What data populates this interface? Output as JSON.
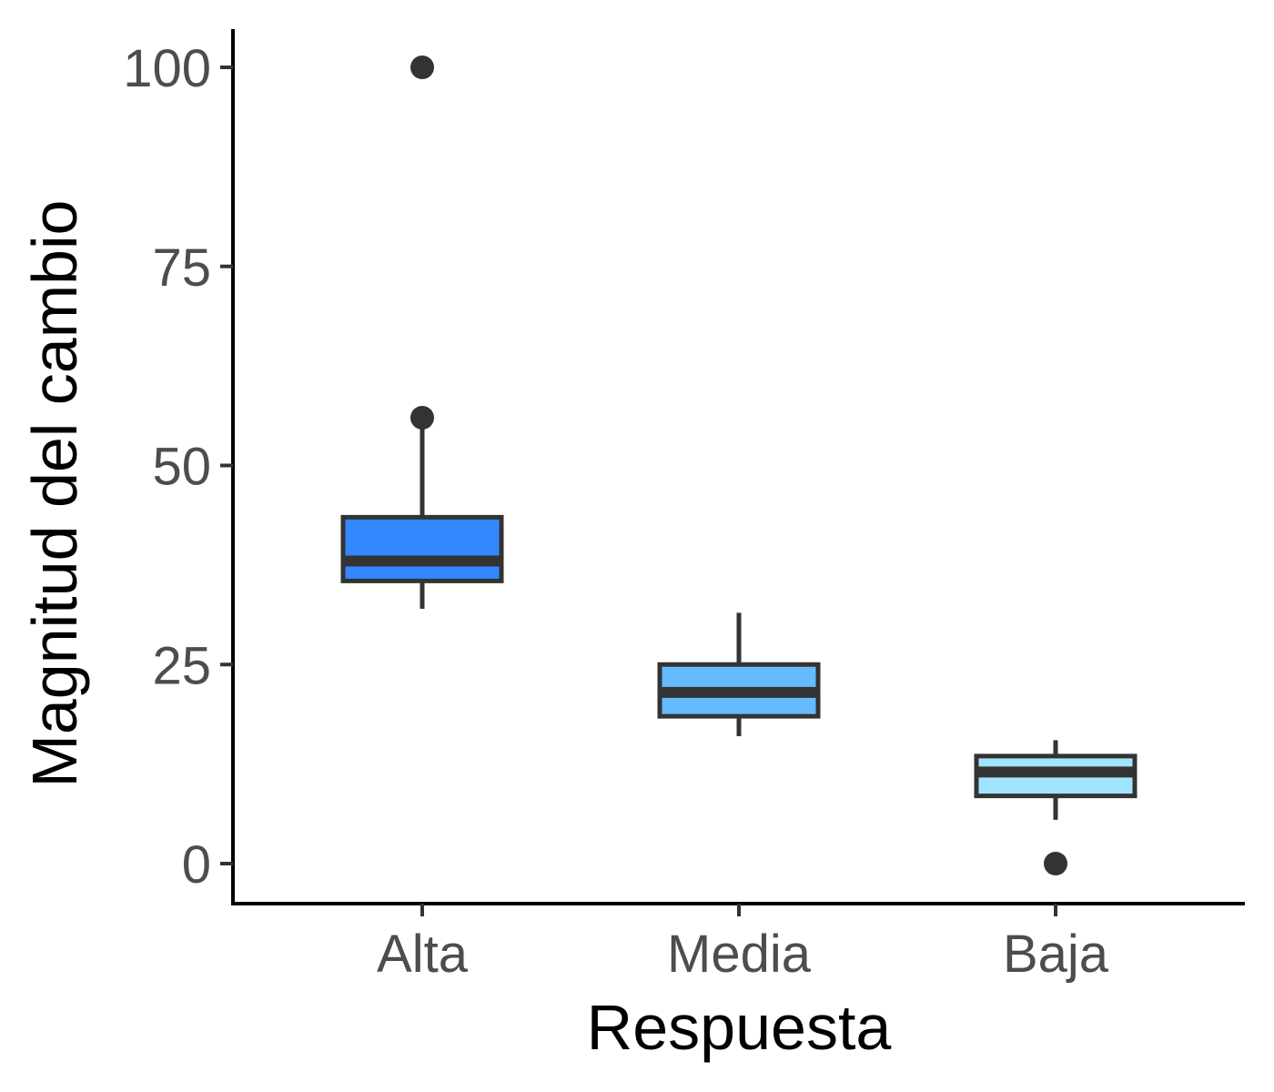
{
  "chart_data": {
    "type": "boxplot",
    "title": "",
    "xlabel": "Respuesta",
    "ylabel": "Magnitud del cambio",
    "categories": [
      "Alta",
      "Media",
      "Baja"
    ],
    "ylim": [
      -5,
      105
    ],
    "yticks": [
      0,
      25,
      50,
      75,
      100
    ],
    "grid": false,
    "legend": "none",
    "boxes": [
      {
        "category": "Alta",
        "whisker_low": 32,
        "q1": 35.5,
        "median": 38,
        "q3": 43.5,
        "whisker_high": 55,
        "outliers": [
          56,
          100
        ],
        "fill": "#3388ff"
      },
      {
        "category": "Media",
        "whisker_low": 16,
        "q1": 18.5,
        "median": 21.5,
        "q3": 25,
        "whisker_high": 31.5,
        "outliers": [],
        "fill": "#66bbff"
      },
      {
        "category": "Baja",
        "whisker_low": 5.5,
        "q1": 8.5,
        "median": 11.5,
        "q3": 13.5,
        "whisker_high": 15.5,
        "outliers": [
          0
        ],
        "fill": "#a0e4ff"
      }
    ],
    "colors": {
      "box_outline": "#333333",
      "axis": "#000000",
      "tick_label": "#4d4d4d"
    }
  }
}
